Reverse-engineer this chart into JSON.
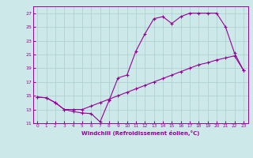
{
  "xlabel": "Windchill (Refroidissement éolien,°C)",
  "line1_x": [
    0,
    1,
    2,
    3,
    4,
    5,
    6,
    7,
    8,
    9,
    10,
    11,
    12,
    13,
    14,
    15,
    16,
    17,
    18,
    19,
    20,
    21,
    22,
    23
  ],
  "line1_y": [
    14.8,
    14.7,
    14.0,
    13.0,
    12.7,
    12.5,
    12.4,
    11.2,
    14.3,
    17.6,
    18.0,
    21.5,
    24.0,
    26.2,
    26.5,
    25.5,
    26.5,
    27.0,
    27.0,
    27.0,
    27.0,
    25.0,
    21.2,
    18.7
  ],
  "line2_x": [
    0,
    1,
    2,
    3,
    4,
    5,
    6,
    7,
    8,
    9,
    10,
    11,
    12,
    13,
    14,
    15,
    16,
    17,
    18,
    19,
    20,
    21,
    22,
    23
  ],
  "line2_y": [
    14.8,
    14.7,
    14.0,
    13.0,
    13.0,
    13.0,
    13.5,
    14.0,
    14.5,
    15.0,
    15.5,
    16.0,
    16.5,
    17.0,
    17.5,
    18.0,
    18.5,
    19.0,
    19.5,
    19.8,
    20.2,
    20.5,
    20.8,
    18.7
  ],
  "line_color": "#990099",
  "bg_color": "#cce8e8",
  "grid_color": "#aacece",
  "ylim": [
    11,
    28
  ],
  "yticks": [
    11,
    13,
    15,
    17,
    19,
    21,
    23,
    25,
    27
  ],
  "xlim": [
    -0.5,
    23.5
  ],
  "xticks": [
    0,
    1,
    2,
    3,
    4,
    5,
    6,
    7,
    8,
    9,
    10,
    11,
    12,
    13,
    14,
    15,
    16,
    17,
    18,
    19,
    20,
    21,
    22,
    23
  ]
}
